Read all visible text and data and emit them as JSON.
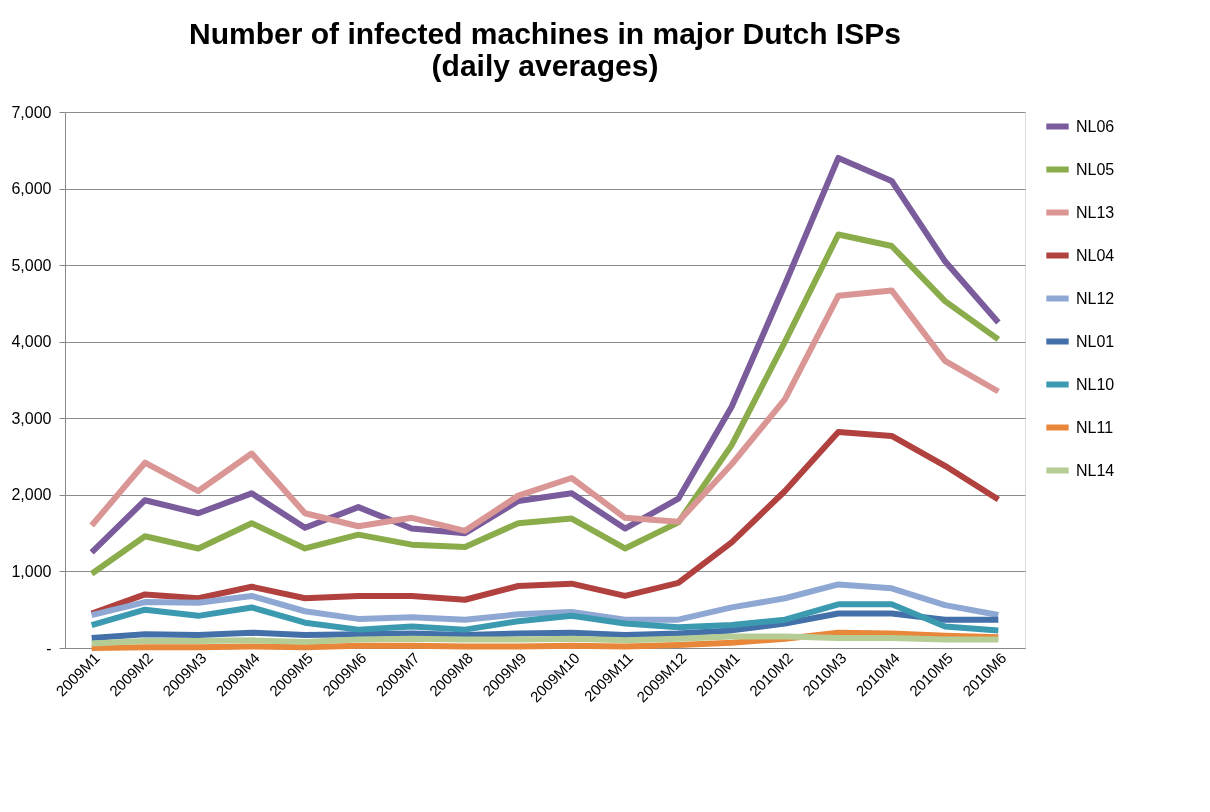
{
  "chart_data": {
    "type": "line",
    "title": [
      "Number of infected machines in major Dutch ISPs",
      "(daily averages)"
    ],
    "categories": [
      "2009M1",
      "2009M2",
      "2009M3",
      "2009M4",
      "2009M5",
      "2009M6",
      "2009M7",
      "2009M8",
      "2009M9",
      "2009M10",
      "2009M11",
      "2009M12",
      "2010M1",
      "2010M2",
      "2010M3",
      "2010M4",
      "2010M5",
      "2010M6"
    ],
    "series": [
      {
        "name": "NL06",
        "color": "#7a5b9c",
        "values": [
          1250,
          1930,
          1760,
          2020,
          1570,
          1840,
          1560,
          1500,
          1920,
          2020,
          1560,
          1950,
          3150,
          4750,
          6400,
          6100,
          5050,
          4250
        ]
      },
      {
        "name": "NL05",
        "color": "#8bac4a",
        "values": [
          970,
          1460,
          1300,
          1630,
          1300,
          1480,
          1350,
          1320,
          1630,
          1690,
          1300,
          1640,
          2650,
          4000,
          5400,
          5250,
          4530,
          4030
        ]
      },
      {
        "name": "NL13",
        "color": "#d99694",
        "values": [
          1600,
          2420,
          2050,
          2540,
          1760,
          1590,
          1700,
          1530,
          1990,
          2220,
          1700,
          1650,
          2400,
          3250,
          4600,
          4670,
          3750,
          3350
        ]
      },
      {
        "name": "NL04",
        "color": "#b0413e",
        "values": [
          450,
          700,
          650,
          800,
          650,
          680,
          680,
          630,
          810,
          840,
          680,
          850,
          1380,
          2050,
          2820,
          2770,
          2380,
          1940
        ]
      },
      {
        "name": "NL12",
        "color": "#8ea8d3",
        "values": [
          430,
          600,
          590,
          680,
          480,
          380,
          400,
          370,
          440,
          470,
          370,
          370,
          530,
          650,
          830,
          780,
          560,
          430
        ]
      },
      {
        "name": "NL01",
        "color": "#4470aa",
        "values": [
          130,
          180,
          170,
          200,
          170,
          180,
          190,
          170,
          190,
          200,
          170,
          190,
          230,
          320,
          450,
          450,
          370,
          370
        ]
      },
      {
        "name": "NL10",
        "color": "#3c9ab0",
        "values": [
          300,
          500,
          420,
          530,
          330,
          240,
          280,
          240,
          350,
          420,
          320,
          270,
          300,
          370,
          570,
          570,
          280,
          230
        ]
      },
      {
        "name": "NL11",
        "color": "#e8873a",
        "values": [
          0,
          10,
          10,
          20,
          10,
          30,
          30,
          20,
          20,
          30,
          20,
          40,
          70,
          120,
          200,
          190,
          160,
          140
        ]
      },
      {
        "name": "NL14",
        "color": "#b5cd95",
        "values": [
          60,
          90,
          90,
          100,
          80,
          110,
          120,
          110,
          110,
          120,
          100,
          120,
          150,
          150,
          130,
          130,
          110,
          110
        ]
      }
    ],
    "ylim": [
      0,
      7000
    ],
    "yticks": [
      {
        "value": 0,
        "label": "-"
      },
      {
        "value": 1000,
        "label": "1,000"
      },
      {
        "value": 2000,
        "label": "2,000"
      },
      {
        "value": 3000,
        "label": "3,000"
      },
      {
        "value": 4000,
        "label": "4,000"
      },
      {
        "value": 5000,
        "label": "5,000"
      },
      {
        "value": 6000,
        "label": "6,000"
      },
      {
        "value": 7000,
        "label": "7,000"
      }
    ],
    "grid": "y",
    "legend": "right",
    "marker": "none",
    "line_style": "solid"
  }
}
